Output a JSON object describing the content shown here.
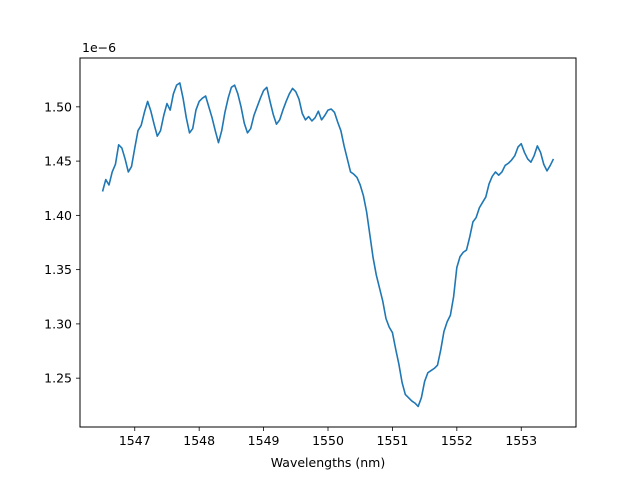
{
  "chart_data": {
    "type": "line",
    "title": "",
    "xlabel": "Wavelengths (nm)",
    "ylabel": "",
    "y_offset_label": "1e−6",
    "xlim": [
      1546.15,
      1553.85
    ],
    "ylim": [
      1.205,
      1.545
    ],
    "x_ticks": [
      1547,
      1548,
      1549,
      1550,
      1551,
      1552,
      1553
    ],
    "x_tick_labels": [
      "1547",
      "1548",
      "1549",
      "1550",
      "1551",
      "1552",
      "1553"
    ],
    "y_ticks": [
      1.25,
      1.3,
      1.35,
      1.4,
      1.45,
      1.5
    ],
    "y_tick_labels": [
      "1.25",
      "1.30",
      "1.35",
      "1.40",
      "1.45",
      "1.50"
    ],
    "grid": false,
    "line_color": "#1f77b4",
    "series": [
      {
        "x": [
          1546.5,
          1546.55,
          1546.6,
          1546.65,
          1546.7,
          1546.75,
          1546.8,
          1546.85,
          1546.9,
          1546.95,
          1547.0,
          1547.05,
          1547.1,
          1547.15,
          1547.2,
          1547.25,
          1547.3,
          1547.35,
          1547.4,
          1547.45,
          1547.5,
          1547.55,
          1547.6,
          1547.65,
          1547.7,
          1547.75,
          1547.8,
          1547.85,
          1547.9,
          1547.95,
          1548.0,
          1548.05,
          1548.1,
          1548.15,
          1548.2,
          1548.25,
          1548.3,
          1548.35,
          1548.4,
          1548.45,
          1548.5,
          1548.55,
          1548.6,
          1548.65,
          1548.7,
          1548.75,
          1548.8,
          1548.85,
          1548.9,
          1548.95,
          1549.0,
          1549.05,
          1549.1,
          1549.15,
          1549.2,
          1549.25,
          1549.3,
          1549.35,
          1549.4,
          1549.45,
          1549.5,
          1549.55,
          1549.6,
          1549.65,
          1549.7,
          1549.75,
          1549.8,
          1549.85,
          1549.9,
          1549.95,
          1550.0,
          1550.05,
          1550.1,
          1550.15,
          1550.2,
          1550.25,
          1550.3,
          1550.35,
          1550.4,
          1550.45,
          1550.5,
          1550.55,
          1550.6,
          1550.65,
          1550.7,
          1550.75,
          1550.8,
          1550.85,
          1550.9,
          1550.95,
          1551.0,
          1551.05,
          1551.1,
          1551.15,
          1551.2,
          1551.25,
          1551.3,
          1551.35,
          1551.4,
          1551.45,
          1551.5,
          1551.55,
          1551.6,
          1551.65,
          1551.7,
          1551.75,
          1551.8,
          1551.85,
          1551.9,
          1551.95,
          1552.0,
          1552.05,
          1552.1,
          1552.15,
          1552.2,
          1552.25,
          1552.3,
          1552.35,
          1552.4,
          1552.45,
          1552.5,
          1552.55,
          1552.6,
          1552.65,
          1552.7,
          1552.75,
          1552.8,
          1552.85,
          1552.9,
          1552.95,
          1553.0,
          1553.05,
          1553.1,
          1553.15,
          1553.2,
          1553.25,
          1553.3,
          1553.35,
          1553.4,
          1553.45,
          1553.5
        ],
        "y": [
          1.422,
          1.433,
          1.428,
          1.44,
          1.447,
          1.465,
          1.462,
          1.452,
          1.44,
          1.445,
          1.462,
          1.478,
          1.483,
          1.495,
          1.505,
          1.496,
          1.484,
          1.473,
          1.478,
          1.492,
          1.503,
          1.497,
          1.512,
          1.52,
          1.522,
          1.508,
          1.49,
          1.476,
          1.48,
          1.497,
          1.505,
          1.508,
          1.51,
          1.5,
          1.49,
          1.478,
          1.467,
          1.478,
          1.495,
          1.508,
          1.518,
          1.52,
          1.512,
          1.5,
          1.485,
          1.476,
          1.48,
          1.492,
          1.5,
          1.508,
          1.515,
          1.518,
          1.505,
          1.493,
          1.484,
          1.488,
          1.497,
          1.505,
          1.512,
          1.517,
          1.514,
          1.507,
          1.494,
          1.488,
          1.491,
          1.487,
          1.49,
          1.496,
          1.488,
          1.492,
          1.497,
          1.498,
          1.495,
          1.486,
          1.478,
          1.464,
          1.452,
          1.44,
          1.438,
          1.435,
          1.428,
          1.418,
          1.403,
          1.382,
          1.361,
          1.345,
          1.333,
          1.321,
          1.305,
          1.297,
          1.292,
          1.277,
          1.263,
          1.246,
          1.235,
          1.232,
          1.229,
          1.227,
          1.224,
          1.232,
          1.247,
          1.255,
          1.257,
          1.259,
          1.262,
          1.276,
          1.293,
          1.302,
          1.308,
          1.325,
          1.352,
          1.362,
          1.366,
          1.368,
          1.38,
          1.394,
          1.398,
          1.407,
          1.412,
          1.417,
          1.429,
          1.436,
          1.44,
          1.437,
          1.44,
          1.446,
          1.448,
          1.451,
          1.455,
          1.463,
          1.466,
          1.458,
          1.452,
          1.449,
          1.455,
          1.464,
          1.458,
          1.447,
          1.441,
          1.446,
          1.452
        ]
      }
    ]
  }
}
